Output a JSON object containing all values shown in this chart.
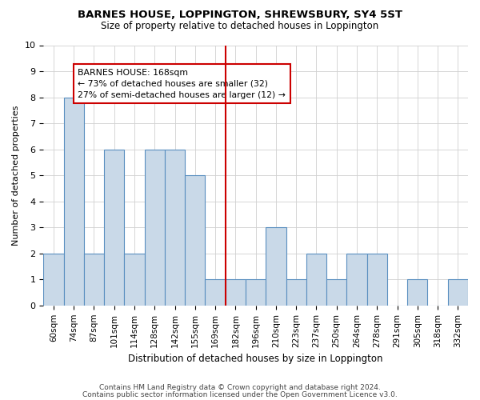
{
  "title": "BARNES HOUSE, LOPPINGTON, SHREWSBURY, SY4 5ST",
  "subtitle": "Size of property relative to detached houses in Loppington",
  "xlabel": "Distribution of detached houses by size in Loppington",
  "ylabel": "Number of detached properties",
  "categories": [
    "60sqm",
    "74sqm",
    "87sqm",
    "101sqm",
    "114sqm",
    "128sqm",
    "142sqm",
    "155sqm",
    "169sqm",
    "182sqm",
    "196sqm",
    "210sqm",
    "223sqm",
    "237sqm",
    "250sqm",
    "264sqm",
    "278sqm",
    "291sqm",
    "305sqm",
    "318sqm",
    "332sqm"
  ],
  "values": [
    2,
    8,
    2,
    6,
    2,
    6,
    6,
    5,
    1,
    1,
    1,
    3,
    1,
    2,
    1,
    2,
    2,
    0,
    1,
    0,
    1
  ],
  "bar_color": "#c9d9e8",
  "bar_edge_color": "#5a8fc0",
  "highlight_index": 8,
  "highlight_line_color": "#cc0000",
  "annotation_line1": "BARNES HOUSE: 168sqm",
  "annotation_line2": "← 73% of detached houses are smaller (32)",
  "annotation_line3": "27% of semi-detached houses are larger (12) →",
  "annotation_box_color": "#cc0000",
  "ylim": [
    0,
    10
  ],
  "yticks": [
    0,
    1,
    2,
    3,
    4,
    5,
    6,
    7,
    8,
    9,
    10
  ],
  "footer1": "Contains HM Land Registry data © Crown copyright and database right 2024.",
  "footer2": "Contains public sector information licensed under the Open Government Licence v3.0.",
  "background_color": "#ffffff",
  "grid_color": "#d0d0d0",
  "title_fontsize": 9.5,
  "subtitle_fontsize": 8.5,
  "xlabel_fontsize": 8.5,
  "ylabel_fontsize": 8.0,
  "tick_fontsize": 7.5,
  "footer_fontsize": 6.5
}
